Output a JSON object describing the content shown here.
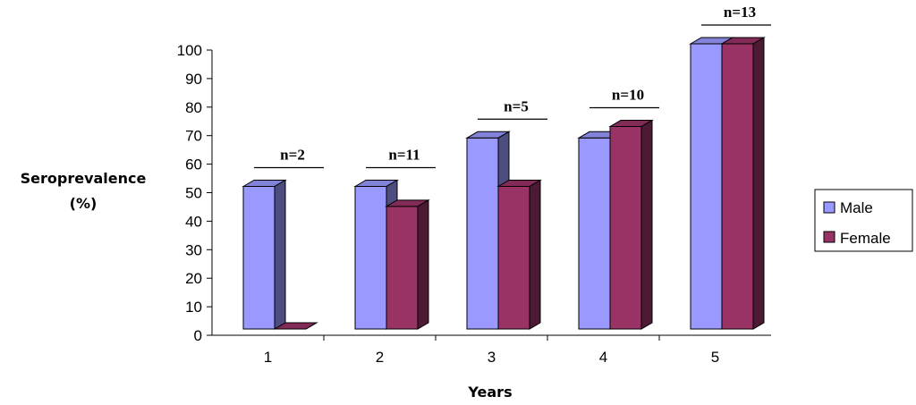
{
  "chart_data": {
    "type": "bar",
    "style": "3d-clustered-column",
    "title": "",
    "xlabel": "Years",
    "ylabel_lines": [
      "Seroprevalence",
      "(%)"
    ],
    "ylim": [
      0,
      100
    ],
    "yticks": [
      0,
      10,
      20,
      30,
      40,
      50,
      60,
      70,
      80,
      90,
      100
    ],
    "categories": [
      "1",
      "2",
      "3",
      "4",
      "5"
    ],
    "series": [
      {
        "name": "Male",
        "color": "#9999ff",
        "values": [
          50,
          50,
          67,
          67,
          100
        ]
      },
      {
        "name": "Female",
        "color": "#993366",
        "values": [
          0,
          43,
          50,
          71,
          100
        ]
      }
    ],
    "annotations": [
      "n=2",
      "n=11",
      "n=5",
      "n=10",
      "n=13"
    ],
    "legend_position": "right"
  }
}
